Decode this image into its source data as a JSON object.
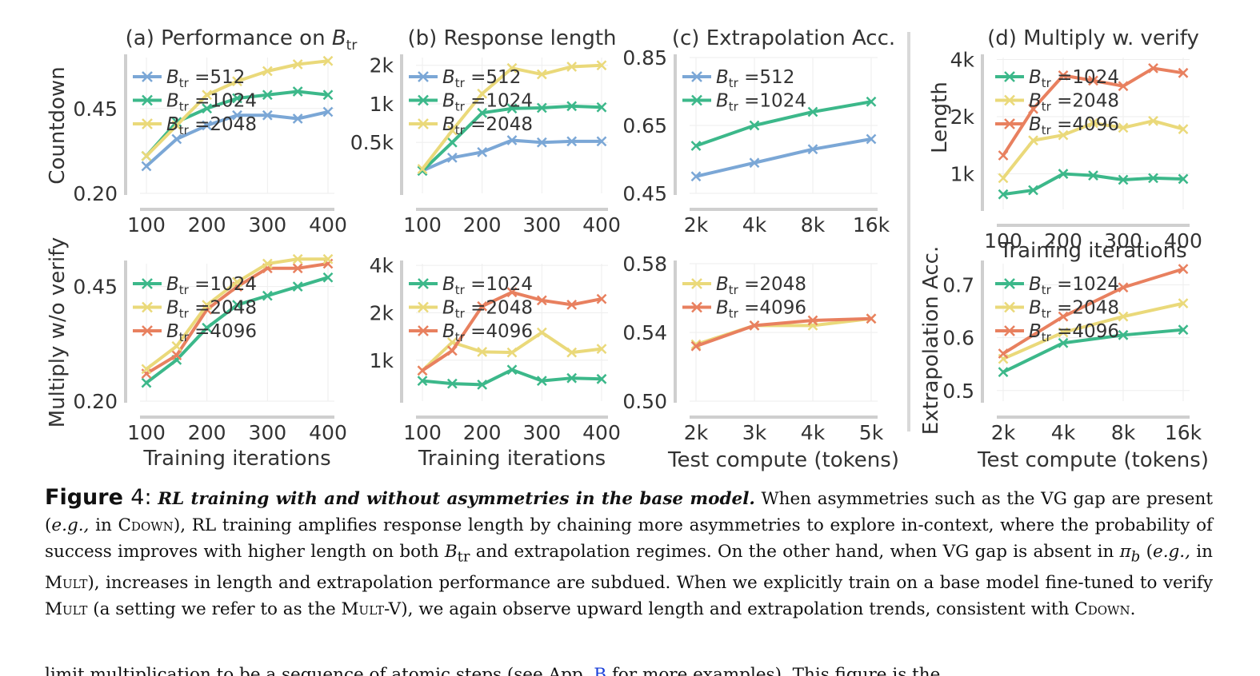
{
  "colors": {
    "blue": "#7ba7d6",
    "green": "#3cb88a",
    "yellow": "#ead97a",
    "orange": "#e8805f",
    "axis": "#cfcfcf",
    "grid": "#eeeeee"
  },
  "chart_data": [
    {
      "id": "a",
      "type": "line",
      "title": "(a) Performance on B_tr",
      "ylabel": "Countdown",
      "xlabel": "",
      "x": [
        100,
        150,
        200,
        250,
        300,
        350,
        400
      ],
      "xticks": [
        100,
        200,
        300,
        400
      ],
      "xlim": [
        100,
        400
      ],
      "yticks": [
        {
          "v": 0.2,
          "l": "0.20"
        },
        {
          "v": 0.45,
          "l": "0.45"
        }
      ],
      "ylim": [
        0.2,
        0.6
      ],
      "series": [
        {
          "name": "B_tr =512",
          "color": "blue",
          "values": [
            0.28,
            0.36,
            0.4,
            0.43,
            0.43,
            0.42,
            0.44
          ]
        },
        {
          "name": "B_tr =1024",
          "color": "green",
          "values": [
            0.31,
            0.41,
            0.45,
            0.48,
            0.49,
            0.5,
            0.49
          ]
        },
        {
          "name": "B_tr =2048",
          "color": "yellow",
          "values": [
            0.31,
            0.4,
            0.49,
            0.53,
            0.56,
            0.58,
            0.59
          ]
        }
      ],
      "legend_order": [
        0,
        1,
        2
      ],
      "legend": "top-left"
    },
    {
      "id": "b",
      "type": "line",
      "title": "(b) Response length",
      "ylabel": "",
      "xlabel": "",
      "x": [
        100,
        150,
        200,
        250,
        300,
        350,
        400
      ],
      "xticks": [
        100,
        200,
        300,
        400
      ],
      "xlim": [
        100,
        400
      ],
      "yscale": "log",
      "yticks": [
        {
          "v": 500,
          "l": "0.5k"
        },
        {
          "v": 1000,
          "l": "1k"
        },
        {
          "v": 2000,
          "l": "2k"
        }
      ],
      "ylim": [
        200,
        2300
      ],
      "series": [
        {
          "name": "B_tr =512",
          "color": "blue",
          "values": [
            300,
            380,
            420,
            520,
            500,
            510,
            510
          ]
        },
        {
          "name": "B_tr =1024",
          "color": "green",
          "values": [
            300,
            500,
            850,
            920,
            930,
            960,
            940
          ]
        },
        {
          "name": "B_tr =2048",
          "color": "yellow",
          "values": [
            310,
            620,
            1200,
            1900,
            1700,
            1950,
            2000
          ]
        }
      ],
      "legend_order": [
        0,
        1,
        2
      ],
      "legend": "top-left"
    },
    {
      "id": "c",
      "type": "line",
      "title": "(c) Extrapolation Acc.",
      "ylabel": "",
      "xlabel": "",
      "x": [
        "2k",
        "4k",
        "8k",
        "16k"
      ],
      "xscale": "log2",
      "xticks": [
        "2k",
        "4k",
        "8k",
        "16k"
      ],
      "xlim": [
        "2k",
        "16k"
      ],
      "yticks": [
        {
          "v": 0.45,
          "l": "0.45"
        },
        {
          "v": 0.65,
          "l": "0.65"
        },
        {
          "v": 0.85,
          "l": "0.85"
        }
      ],
      "ylim": [
        0.45,
        0.85
      ],
      "series": [
        {
          "name": "B_tr =512",
          "color": "blue",
          "values": [
            0.5,
            0.54,
            0.58,
            0.61
          ]
        },
        {
          "name": "B_tr =1024",
          "color": "green",
          "values": [
            0.59,
            0.65,
            0.69,
            0.72
          ]
        }
      ],
      "legend_order": [
        0,
        1
      ],
      "legend": "top-left"
    },
    {
      "id": "d",
      "type": "line",
      "title": "(d) Multiply w. verify",
      "ylabel": "Length",
      "xlabel": "Training iterations",
      "x": [
        100,
        150,
        200,
        250,
        300,
        350,
        400
      ],
      "xticks": [
        100,
        200,
        300,
        400
      ],
      "xlim": [
        100,
        400
      ],
      "yscale": "log",
      "yticks": [
        {
          "v": 1000,
          "l": "1k"
        },
        {
          "v": 2000,
          "l": "2k"
        },
        {
          "v": 4000,
          "l": "4k"
        }
      ],
      "ylim": [
        650,
        4100
      ],
      "series": [
        {
          "name": "B_tr =1024",
          "color": "green",
          "values": [
            780,
            820,
            1000,
            980,
            930,
            950,
            940
          ]
        },
        {
          "name": "B_tr =2048",
          "color": "yellow",
          "values": [
            950,
            1500,
            1600,
            1850,
            1750,
            1900,
            1720
          ]
        },
        {
          "name": "B_tr =4096",
          "color": "orange",
          "values": [
            1250,
            2200,
            3300,
            3100,
            2900,
            3600,
            3400
          ]
        }
      ],
      "legend_order": [
        0,
        1,
        2
      ],
      "legend": "top-left"
    },
    {
      "id": "e",
      "type": "line",
      "title": "",
      "ylabel": "Multiply w/o verify",
      "xlabel": "Training iterations",
      "x": [
        100,
        150,
        200,
        250,
        300,
        350,
        400
      ],
      "xticks": [
        100,
        200,
        300,
        400
      ],
      "xlim": [
        100,
        400
      ],
      "yticks": [
        {
          "v": 0.2,
          "l": "0.20"
        },
        {
          "v": 0.45,
          "l": "0.45"
        }
      ],
      "ylim": [
        0.2,
        0.5
      ],
      "series": [
        {
          "name": "B_tr =1024",
          "color": "green",
          "values": [
            0.24,
            0.29,
            0.36,
            0.41,
            0.43,
            0.45,
            0.47
          ]
        },
        {
          "name": "B_tr =2048",
          "color": "yellow",
          "values": [
            0.27,
            0.32,
            0.41,
            0.46,
            0.5,
            0.51,
            0.51
          ]
        },
        {
          "name": "B_tr =4096",
          "color": "orange",
          "values": [
            0.26,
            0.3,
            0.4,
            0.45,
            0.49,
            0.49,
            0.5
          ]
        }
      ],
      "draw_order": [
        0,
        2,
        1
      ],
      "legend_order": [
        0,
        1,
        2
      ],
      "legend": "top-left"
    },
    {
      "id": "f",
      "type": "line",
      "title": "",
      "ylabel": "",
      "xlabel": "Training iterations",
      "x": [
        100,
        150,
        200,
        250,
        300,
        350,
        400
      ],
      "xticks": [
        100,
        200,
        300,
        400
      ],
      "xlim": [
        100,
        400
      ],
      "yscale": "log",
      "yticks": [
        {
          "v": 1000,
          "l": "1k"
        },
        {
          "v": 2000,
          "l": "2k"
        },
        {
          "v": 4000,
          "l": "4k"
        }
      ],
      "ylim": [
        550,
        4100
      ],
      "series": [
        {
          "name": "B_tr =1024",
          "color": "green",
          "values": [
            740,
            710,
            700,
            870,
            740,
            770,
            760
          ]
        },
        {
          "name": "B_tr =2048",
          "color": "yellow",
          "values": [
            860,
            1300,
            1130,
            1120,
            1500,
            1120,
            1180
          ]
        },
        {
          "name": "B_tr =4096",
          "color": "orange",
          "values": [
            860,
            1150,
            2200,
            2700,
            2400,
            2250,
            2450
          ]
        }
      ],
      "legend_order": [
        0,
        1,
        2
      ],
      "legend": "top-left"
    },
    {
      "id": "g",
      "type": "line",
      "title": "",
      "ylabel": "",
      "xlabel": "Test compute (tokens)",
      "x": [
        "2k",
        "3k",
        "4k",
        "5k"
      ],
      "xticks": [
        "2k",
        "3k",
        "4k",
        "5k"
      ],
      "xlim": [
        "2k",
        "5k"
      ],
      "yticks": [
        {
          "v": 0.5,
          "l": "0.50"
        },
        {
          "v": 0.54,
          "l": "0.54"
        },
        {
          "v": 0.58,
          "l": "0.58"
        }
      ],
      "ylim": [
        0.5,
        0.58
      ],
      "series": [
        {
          "name": "B_tr =2048",
          "color": "yellow",
          "values": [
            0.533,
            0.544,
            0.544,
            0.548
          ]
        },
        {
          "name": "B_tr =4096",
          "color": "orange",
          "values": [
            0.532,
            0.544,
            0.547,
            0.548
          ]
        }
      ],
      "legend_order": [
        0,
        1
      ],
      "legend": "top-left"
    },
    {
      "id": "h",
      "type": "line",
      "title": "",
      "ylabel": "Extrapolation Acc.",
      "xlabel": "Test compute (tokens)",
      "x": [
        "2k",
        "4k",
        "8k",
        "16k"
      ],
      "xscale": "log2",
      "xticks": [
        "2k",
        "4k",
        "8k",
        "16k"
      ],
      "xlim": [
        "2k",
        "16k"
      ],
      "yticks": [
        {
          "v": 0.5,
          "l": "0.5"
        },
        {
          "v": 0.6,
          "l": "0.6"
        },
        {
          "v": 0.7,
          "l": "0.7"
        }
      ],
      "ylim": [
        0.48,
        0.74
      ],
      "series": [
        {
          "name": "B_tr =1024",
          "color": "green",
          "values": [
            0.535,
            0.59,
            0.605,
            0.615
          ]
        },
        {
          "name": "B_tr =2048",
          "color": "yellow",
          "values": [
            0.56,
            0.61,
            0.64,
            0.665
          ]
        },
        {
          "name": "B_tr =4096",
          "color": "orange",
          "values": [
            0.57,
            0.64,
            0.695,
            0.73
          ]
        }
      ],
      "legend_order": [
        0,
        1,
        2
      ],
      "legend": "top-left"
    }
  ],
  "caption": {
    "label_word": "Figure",
    "label_num": "4:",
    "title": "RL training with and without asymmetries in the base model.",
    "t1": " When asymmetries such as the VG gap are present (",
    "eg1": "e.g.,",
    "t2": " in ",
    "cdown1": "Cdown",
    "t3": "), RL training amplifies response length by chaining more asymmetries to explore in-context, where the probability of success improves with higher length on both ",
    "btr": "B",
    "btr_sub": "tr",
    "t4": " and extrapolation regimes. On the other hand, when VG gap is absent in ",
    "pi": "π",
    "pi_sub": "b",
    "t5": " (",
    "eg2": "e.g.,",
    "t6": " in ",
    "mult1": "Mult",
    "t7": "), increases in length and extrapolation performance are subdued. When we explicitly train on a base model fine-tuned to verify ",
    "mult2": "Mult",
    "t8": "  (a setting we refer to as the ",
    "multv": "Mult-V",
    "t9": "), we again observe upward length and extrapolation trends, consistent with ",
    "cdown2": "Cdown",
    "t10": "."
  },
  "body_cutoff": {
    "t1": "limit multiplication to be a sequence of atomic steps (see App. ",
    "link": "B",
    "t2": " for more examples). This figure is the"
  }
}
